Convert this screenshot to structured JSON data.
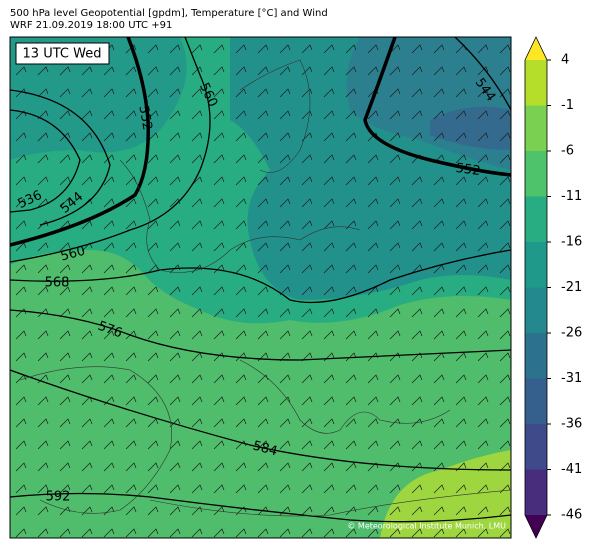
{
  "header": {
    "title": "500 hPa level Geopotential [gpdm], Temperature [°C] and Wind",
    "subtitle": "WRF 21.09.2019 18:00 UTC +91"
  },
  "time_label": "13 UTC Wed",
  "contour_labels": [
    552,
    560,
    544,
    536,
    544,
    560,
    568,
    576,
    584,
    592,
    552
  ],
  "credit": "© Meteorological Institute Munich, LMU",
  "colorbar": {
    "ticks": [
      4,
      -1,
      -6,
      -11,
      -16,
      -21,
      -26,
      -31,
      -36,
      -41,
      -46
    ],
    "colors": [
      "#b5de2b",
      "#7ad151",
      "#4ec36b",
      "#27ad81",
      "#1f9a8a",
      "#23898e",
      "#2c728e",
      "#355f8d",
      "#3e4a89",
      "#472d7b"
    ],
    "extend_colors": [
      "#fde725",
      "#440154"
    ]
  }
}
